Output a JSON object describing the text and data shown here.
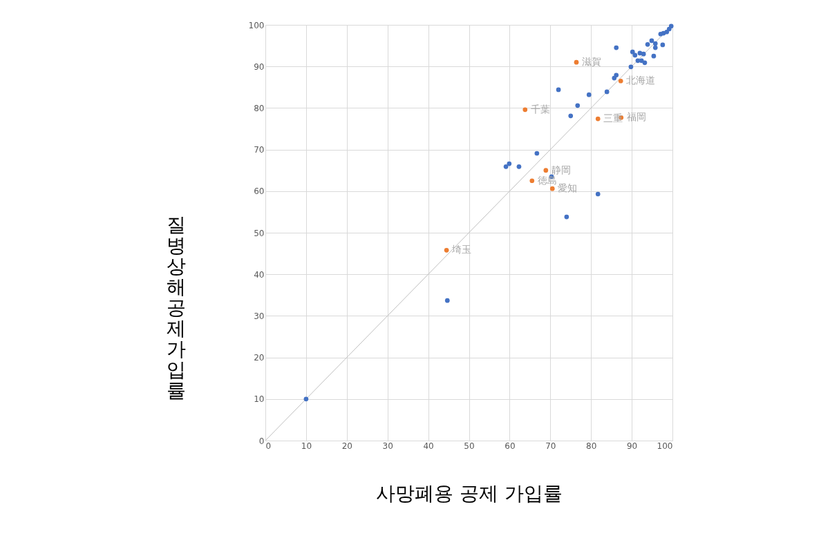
{
  "chart_data": {
    "type": "scatter",
    "xlabel": "사망폐용  공제  가입률",
    "ylabel": "질병상해 공제 가입률",
    "xlim": [
      0,
      100
    ],
    "ylim": [
      0,
      100
    ],
    "xticks": [
      0,
      10,
      20,
      30,
      40,
      50,
      60,
      70,
      80,
      90,
      100
    ],
    "yticks": [
      0,
      10,
      20,
      30,
      40,
      50,
      60,
      70,
      80,
      90,
      100
    ],
    "grid": true,
    "marker": "circle",
    "series": [
      {
        "type": "line",
        "marker": "none",
        "line_style": "solid",
        "color": "#bfbfbf",
        "x": [
          0,
          100
        ],
        "values": [
          0,
          100
        ]
      },
      {
        "color": "#4472c4",
        "x": [
          10,
          44.7,
          59.1,
          59.9,
          62.3,
          66.7,
          70.3,
          72.0,
          74.0,
          75.0,
          76.7,
          79.5,
          81.7,
          83.9,
          85.7,
          86.2,
          86.2,
          89.8,
          90.2,
          90.8,
          91.5,
          92.0,
          92.4,
          92.9,
          93.2,
          93.9,
          94.9,
          95.4,
          95.8,
          95.8,
          97.1,
          97.6,
          97.8,
          98.6,
          99.2,
          99.7
        ],
        "values": [
          10,
          33.7,
          65.9,
          66.6,
          65.9,
          69.1,
          63.5,
          84.4,
          53.8,
          78.1,
          80.6,
          83.2,
          59.3,
          83.9,
          87.2,
          87.9,
          94.5,
          89.9,
          93.5,
          92.7,
          91.4,
          93.2,
          91.4,
          93.0,
          90.9,
          95.3,
          96.2,
          92.5,
          95.5,
          94.5,
          97.8,
          95.2,
          98.0,
          98.3,
          99.0,
          99.7
        ]
      },
      {
        "color": "#ed7d31",
        "x": [
          76.4,
          87.3,
          63.8,
          81.7,
          87.4,
          68.9,
          65.5,
          70.5,
          44.5
        ],
        "values": [
          91.0,
          86.5,
          79.6,
          77.4,
          77.7,
          65.0,
          62.5,
          60.6,
          45.8
        ]
      }
    ],
    "annotations": [
      {
        "text": "滋賀",
        "x": 76.4,
        "y": 91.0
      },
      {
        "text": "北海道",
        "x": 87.3,
        "y": 86.5
      },
      {
        "text": "千葉",
        "x": 63.8,
        "y": 79.6
      },
      {
        "text": "三重",
        "x": 81.7,
        "y": 77.4
      },
      {
        "text": "福岡",
        "x": 87.4,
        "y": 77.7
      },
      {
        "text": "静岡",
        "x": 68.9,
        "y": 65.0
      },
      {
        "text": "徳島",
        "x": 65.5,
        "y": 62.5
      },
      {
        "text": "愛知",
        "x": 70.5,
        "y": 60.6
      },
      {
        "text": "埼玉",
        "x": 44.5,
        "y": 45.8
      }
    ]
  }
}
